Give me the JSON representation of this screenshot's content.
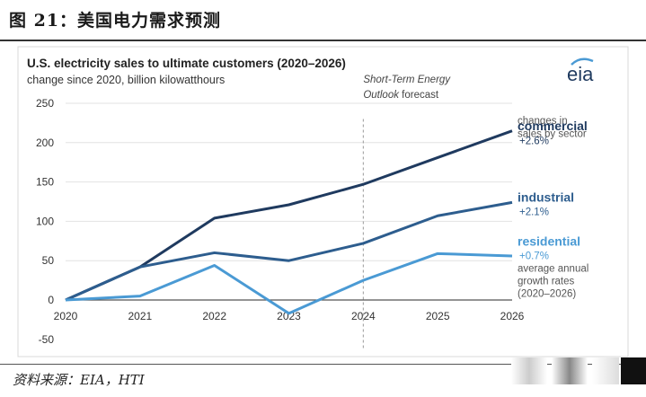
{
  "figure": {
    "title": "图 21：美国电力需求预测",
    "source": "资料来源：EIA，HTI"
  },
  "chart_data": {
    "type": "line",
    "title": "U.S. electricity sales to ultimate customers (2020–2026)",
    "subtitle": "change since 2020, billion kilowatthours",
    "xlabel": "",
    "ylabel": "",
    "x": [
      2020,
      2021,
      2022,
      2023,
      2024,
      2025,
      2026
    ],
    "x_tick_labels": [
      "2020",
      "2021",
      "2022",
      "2023",
      "2024",
      "2025",
      "2026"
    ],
    "ylim": [
      -50,
      250
    ],
    "y_ticks": [
      250,
      200,
      150,
      100,
      50,
      0,
      -50
    ],
    "y_tick_labels": [
      "250",
      "200",
      "150",
      "100",
      "50",
      "0",
      "-50"
    ],
    "grid": "horizontal",
    "forecast_start": 2024,
    "forecast_label_line1": "Short-Term Energy",
    "forecast_label_line2": "Outlook",
    "forecast_label_suffix": " forecast",
    "logo": "eia",
    "legend_header": [
      "changes in",
      "sales by sector"
    ],
    "legend_footer": [
      "average annual",
      "growth rates",
      "(2020–2026)"
    ],
    "series": [
      {
        "name": "commercial",
        "rate": "+2.6%",
        "color": "#1f3a5f",
        "values": [
          0,
          42,
          104,
          121,
          147,
          181,
          215
        ]
      },
      {
        "name": "industrial",
        "rate": "+2.1%",
        "color": "#2d5d8e",
        "values": [
          0,
          42,
          60,
          50,
          72,
          107,
          124
        ]
      },
      {
        "name": "residential",
        "rate": "+0.7%",
        "color": "#4a9ad4",
        "values": [
          0,
          5,
          44,
          -17,
          25,
          59,
          56
        ]
      }
    ]
  }
}
